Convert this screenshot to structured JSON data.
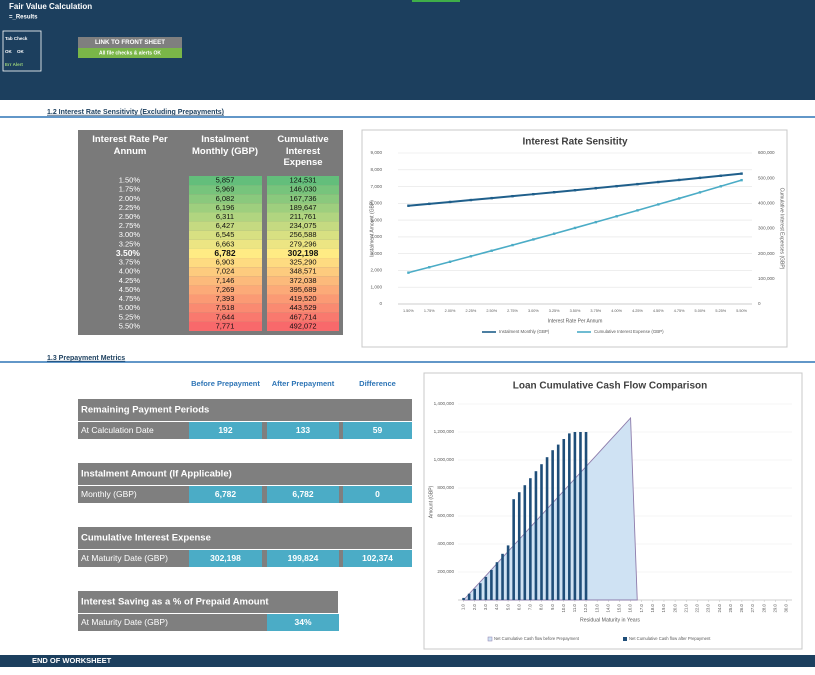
{
  "header": {
    "title": "Fair Value Calculation",
    "subtitle": "=_Results"
  },
  "tab_check": {
    "title": "Tab Check",
    "status": [
      "OK",
      "OK"
    ],
    "alert": "Err Alert"
  },
  "link_button": {
    "label": "LINK TO FRONT SHEET",
    "status": "All file checks & alerts OK"
  },
  "sensitivity": {
    "heading": "1.2 Interest Rate Sensitivity (Excluding Prepayments)",
    "table": {
      "columns": [
        "Interest Rate Per Annum",
        "Instalment Monthly (GBP)",
        "Cumulative Interest Expense"
      ],
      "rows": [
        [
          "1.50%",
          "5,857",
          "124,531"
        ],
        [
          "1.75%",
          "5,969",
          "146,030"
        ],
        [
          "2.00%",
          "6,082",
          "167,736"
        ],
        [
          "2.25%",
          "6,196",
          "189,647"
        ],
        [
          "2.50%",
          "6,311",
          "211,761"
        ],
        [
          "2.75%",
          "6,427",
          "234,075"
        ],
        [
          "3.00%",
          "6,545",
          "256,588"
        ],
        [
          "3.25%",
          "6,663",
          "279,296"
        ],
        [
          "3.50%",
          "6,782",
          "302,198"
        ],
        [
          "3.75%",
          "6,903",
          "325,290"
        ],
        [
          "4.00%",
          "7,024",
          "348,571"
        ],
        [
          "4.25%",
          "7,146",
          "372,038"
        ],
        [
          "4.50%",
          "7,269",
          "395,689"
        ],
        [
          "4.75%",
          "7,393",
          "419,520"
        ],
        [
          "5.00%",
          "7,518",
          "443,529"
        ],
        [
          "5.25%",
          "7,644",
          "467,714"
        ],
        [
          "5.50%",
          "7,771",
          "492,072"
        ]
      ]
    }
  },
  "prepayment": {
    "heading": "1.3 Prepayment Metrics",
    "columns": [
      "Before Prepayment",
      "After Prepayment",
      "Difference"
    ],
    "groups": [
      {
        "title": "Remaining Payment Periods",
        "label": "At Calculation Date",
        "values": [
          "192",
          "133",
          "59"
        ]
      },
      {
        "title": "Instalment Amount (If Applicable)",
        "label": "Monthly (GBP)",
        "values": [
          "6,782",
          "6,782",
          "0"
        ]
      },
      {
        "title": "Cumulative Interest Expense",
        "label": "At Maturity Date (GBP)",
        "values": [
          "302,198",
          "199,824",
          "102,374"
        ]
      },
      {
        "title": "Interest Saving as a % of Prepaid Amount",
        "label": "At Maturity Date (GBP)",
        "values": [
          "34%"
        ]
      }
    ]
  },
  "footer": "END OF WORKSHEET",
  "chart_data": [
    {
      "type": "line",
      "title": "Interest Rate Sensitity",
      "x_label": "Interest Rate Per Annum",
      "y_label": "Instalment Amount (GBP)",
      "y2_label": "Cumulative Interest Expenses (GBP)",
      "categories": [
        "1.50%",
        "1.75%",
        "2.00%",
        "2.25%",
        "2.50%",
        "2.75%",
        "3.00%",
        "3.25%",
        "3.50%",
        "3.75%",
        "4.00%",
        "4.25%",
        "4.50%",
        "4.75%",
        "5.00%",
        "5.25%",
        "5.50%"
      ],
      "series": [
        {
          "name": "Instalment Monthly (GBP)",
          "color": "#1f5f8b",
          "values": [
            5857,
            5969,
            6082,
            6196,
            6311,
            6427,
            6545,
            6663,
            6782,
            6903,
            7024,
            7146,
            7269,
            7393,
            7518,
            7644,
            7771
          ]
        },
        {
          "name": "Cumulative Interest Expense (GBP)",
          "color": "#4bacc6",
          "axis": "y2",
          "values": [
            124531,
            146030,
            167736,
            189647,
            211761,
            234075,
            256588,
            279296,
            302198,
            325290,
            348571,
            372038,
            395689,
            419520,
            443529,
            467714,
            492072
          ]
        }
      ],
      "ylim": [
        0,
        9000
      ],
      "yticks": [
        0,
        {
          "value": 1000,
          "label": "1,000"
        },
        {
          "value": 2000,
          "label": "2,000"
        },
        {
          "value": 3000,
          "label": "3,000"
        },
        {
          "value": 4000,
          "label": "4,000"
        },
        {
          "value": 5000,
          "label": "5,000"
        },
        {
          "value": 6000,
          "label": "6,000"
        },
        {
          "value": 7000,
          "label": "7,000"
        },
        {
          "value": 8000,
          "label": "8,000"
        },
        {
          "value": 9000,
          "label": "9,000"
        }
      ],
      "y2lim": [
        0,
        600000
      ],
      "y2ticks": [
        0,
        {
          "value": 100000,
          "label": "100,000"
        },
        {
          "value": 200000,
          "label": "200,000"
        },
        {
          "value": 300000,
          "label": "300,000"
        },
        {
          "value": 400000,
          "label": "400,000"
        },
        {
          "value": 500000,
          "label": "500,000"
        },
        {
          "value": 600000,
          "label": "600,000"
        }
      ],
      "grid": true,
      "legend": "bottom"
    },
    {
      "type": "bar",
      "title": "Loan Cumulative Cash Flow Comparison",
      "x_label": "Residual Maturity in Years",
      "y_label": "Amount (GBP)",
      "series": [
        {
          "name": "Net Cumulative Cash flow before Prepayment",
          "type": "area",
          "color": "#cfe2f3",
          "x": [
            1,
            2,
            3,
            4,
            5,
            6,
            7,
            8,
            9,
            10,
            11,
            12,
            13,
            14,
            15,
            16,
            16.6
          ],
          "values": [
            0,
            87000,
            173000,
            260000,
            347000,
            433000,
            520000,
            607000,
            693000,
            780000,
            867000,
            953000,
            1040000,
            1127000,
            1213000,
            1300000,
            0
          ]
        },
        {
          "name": "Net Cumulative Cash flow after Prepayment",
          "type": "bar",
          "color": "#1f4e79",
          "x": [
            1,
            1.5,
            2,
            2.5,
            3,
            3.5,
            4,
            4.5,
            5,
            5.5,
            6,
            6.5,
            7,
            7.5,
            8,
            8.5,
            9,
            9.5,
            10,
            10.5,
            11,
            11.5,
            12
          ],
          "values": [
            15000,
            45000,
            80000,
            120000,
            165000,
            215000,
            270000,
            330000,
            390000,
            720000,
            770000,
            820000,
            870000,
            920000,
            970000,
            1020000,
            1070000,
            1110000,
            1150000,
            1190000,
            1200000,
            1200000,
            1200000
          ]
        }
      ],
      "xlim": [
        0.5,
        30.5
      ],
      "xticks": [
        {
          "value": 1,
          "label": "1.0"
        },
        {
          "value": 2,
          "label": "2.0"
        },
        {
          "value": 3,
          "label": "3.0"
        },
        {
          "value": 4,
          "label": "4.0"
        },
        {
          "value": 5,
          "label": "5.0"
        },
        {
          "value": 6,
          "label": "6.0"
        },
        {
          "value": 7,
          "label": "7.0"
        },
        {
          "value": 8,
          "label": "8.0"
        },
        {
          "value": 9,
          "label": "9.0"
        },
        {
          "value": 10,
          "label": "10.0"
        },
        {
          "value": 11,
          "label": "11.0"
        },
        {
          "value": 12,
          "label": "12.0"
        },
        {
          "value": 13,
          "label": "13.0"
        },
        {
          "value": 14,
          "label": "14.0"
        },
        {
          "value": 15,
          "label": "15.0"
        },
        {
          "value": 16,
          "label": "16.0"
        },
        {
          "value": 17,
          "label": "17.0"
        },
        {
          "value": 18,
          "label": "18.0"
        },
        {
          "value": 19,
          "label": "19.0"
        },
        {
          "value": 20,
          "label": "20.0"
        },
        {
          "value": 21,
          "label": "21.0"
        },
        {
          "value": 22,
          "label": "22.0"
        },
        {
          "value": 23,
          "label": "23.0"
        },
        {
          "value": 24,
          "label": "24.0"
        },
        {
          "value": 25,
          "label": "25.0"
        },
        {
          "value": 26,
          "label": "26.0"
        },
        {
          "value": 27,
          "label": "27.0"
        },
        {
          "value": 28,
          "label": "28.0"
        },
        {
          "value": 29,
          "label": "29.0"
        },
        {
          "value": 30,
          "label": "30.0"
        }
      ],
      "ylim": [
        0,
        1400000
      ],
      "yticks": [
        {
          "value": 200000,
          "label": "200,000"
        },
        {
          "value": 400000,
          "label": "400,000"
        },
        {
          "value": 600000,
          "label": "600,000"
        },
        {
          "value": 800000,
          "label": "800,000"
        },
        {
          "value": 1000000,
          "label": "1,000,000"
        },
        {
          "value": 1200000,
          "label": "1,200,000"
        },
        {
          "value": 1400000,
          "label": "1,400,000"
        }
      ],
      "grid": true,
      "legend": "bottom"
    }
  ]
}
